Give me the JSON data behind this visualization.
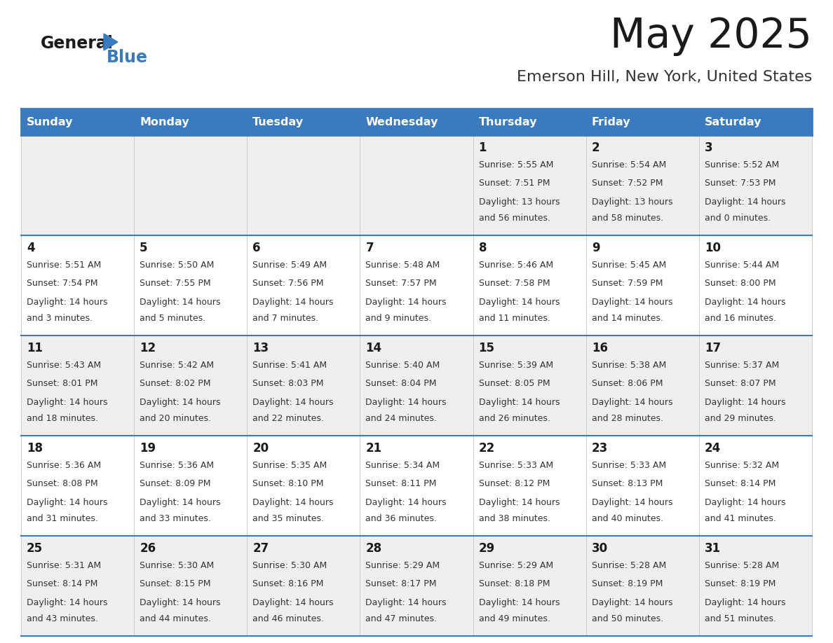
{
  "title": "May 2025",
  "subtitle": "Emerson Hill, New York, United States",
  "header_bg": "#3a7abf",
  "header_text": "#ffffff",
  "row_bg_odd": "#efefef",
  "row_bg_even": "#ffffff",
  "border_color": "#3a7abf",
  "day_headers": [
    "Sunday",
    "Monday",
    "Tuesday",
    "Wednesday",
    "Thursday",
    "Friday",
    "Saturday"
  ],
  "days": [
    {
      "col": 0,
      "row": 0,
      "num": "",
      "sunrise": "",
      "sunset": "",
      "daylight1": "",
      "daylight2": ""
    },
    {
      "col": 1,
      "row": 0,
      "num": "",
      "sunrise": "",
      "sunset": "",
      "daylight1": "",
      "daylight2": ""
    },
    {
      "col": 2,
      "row": 0,
      "num": "",
      "sunrise": "",
      "sunset": "",
      "daylight1": "",
      "daylight2": ""
    },
    {
      "col": 3,
      "row": 0,
      "num": "",
      "sunrise": "",
      "sunset": "",
      "daylight1": "",
      "daylight2": ""
    },
    {
      "col": 4,
      "row": 0,
      "num": "1",
      "sunrise": "Sunrise: 5:55 AM",
      "sunset": "Sunset: 7:51 PM",
      "daylight1": "Daylight: 13 hours",
      "daylight2": "and 56 minutes."
    },
    {
      "col": 5,
      "row": 0,
      "num": "2",
      "sunrise": "Sunrise: 5:54 AM",
      "sunset": "Sunset: 7:52 PM",
      "daylight1": "Daylight: 13 hours",
      "daylight2": "and 58 minutes."
    },
    {
      "col": 6,
      "row": 0,
      "num": "3",
      "sunrise": "Sunrise: 5:52 AM",
      "sunset": "Sunset: 7:53 PM",
      "daylight1": "Daylight: 14 hours",
      "daylight2": "and 0 minutes."
    },
    {
      "col": 0,
      "row": 1,
      "num": "4",
      "sunrise": "Sunrise: 5:51 AM",
      "sunset": "Sunset: 7:54 PM",
      "daylight1": "Daylight: 14 hours",
      "daylight2": "and 3 minutes."
    },
    {
      "col": 1,
      "row": 1,
      "num": "5",
      "sunrise": "Sunrise: 5:50 AM",
      "sunset": "Sunset: 7:55 PM",
      "daylight1": "Daylight: 14 hours",
      "daylight2": "and 5 minutes."
    },
    {
      "col": 2,
      "row": 1,
      "num": "6",
      "sunrise": "Sunrise: 5:49 AM",
      "sunset": "Sunset: 7:56 PM",
      "daylight1": "Daylight: 14 hours",
      "daylight2": "and 7 minutes."
    },
    {
      "col": 3,
      "row": 1,
      "num": "7",
      "sunrise": "Sunrise: 5:48 AM",
      "sunset": "Sunset: 7:57 PM",
      "daylight1": "Daylight: 14 hours",
      "daylight2": "and 9 minutes."
    },
    {
      "col": 4,
      "row": 1,
      "num": "8",
      "sunrise": "Sunrise: 5:46 AM",
      "sunset": "Sunset: 7:58 PM",
      "daylight1": "Daylight: 14 hours",
      "daylight2": "and 11 minutes."
    },
    {
      "col": 5,
      "row": 1,
      "num": "9",
      "sunrise": "Sunrise: 5:45 AM",
      "sunset": "Sunset: 7:59 PM",
      "daylight1": "Daylight: 14 hours",
      "daylight2": "and 14 minutes."
    },
    {
      "col": 6,
      "row": 1,
      "num": "10",
      "sunrise": "Sunrise: 5:44 AM",
      "sunset": "Sunset: 8:00 PM",
      "daylight1": "Daylight: 14 hours",
      "daylight2": "and 16 minutes."
    },
    {
      "col": 0,
      "row": 2,
      "num": "11",
      "sunrise": "Sunrise: 5:43 AM",
      "sunset": "Sunset: 8:01 PM",
      "daylight1": "Daylight: 14 hours",
      "daylight2": "and 18 minutes."
    },
    {
      "col": 1,
      "row": 2,
      "num": "12",
      "sunrise": "Sunrise: 5:42 AM",
      "sunset": "Sunset: 8:02 PM",
      "daylight1": "Daylight: 14 hours",
      "daylight2": "and 20 minutes."
    },
    {
      "col": 2,
      "row": 2,
      "num": "13",
      "sunrise": "Sunrise: 5:41 AM",
      "sunset": "Sunset: 8:03 PM",
      "daylight1": "Daylight: 14 hours",
      "daylight2": "and 22 minutes."
    },
    {
      "col": 3,
      "row": 2,
      "num": "14",
      "sunrise": "Sunrise: 5:40 AM",
      "sunset": "Sunset: 8:04 PM",
      "daylight1": "Daylight: 14 hours",
      "daylight2": "and 24 minutes."
    },
    {
      "col": 4,
      "row": 2,
      "num": "15",
      "sunrise": "Sunrise: 5:39 AM",
      "sunset": "Sunset: 8:05 PM",
      "daylight1": "Daylight: 14 hours",
      "daylight2": "and 26 minutes."
    },
    {
      "col": 5,
      "row": 2,
      "num": "16",
      "sunrise": "Sunrise: 5:38 AM",
      "sunset": "Sunset: 8:06 PM",
      "daylight1": "Daylight: 14 hours",
      "daylight2": "and 28 minutes."
    },
    {
      "col": 6,
      "row": 2,
      "num": "17",
      "sunrise": "Sunrise: 5:37 AM",
      "sunset": "Sunset: 8:07 PM",
      "daylight1": "Daylight: 14 hours",
      "daylight2": "and 29 minutes."
    },
    {
      "col": 0,
      "row": 3,
      "num": "18",
      "sunrise": "Sunrise: 5:36 AM",
      "sunset": "Sunset: 8:08 PM",
      "daylight1": "Daylight: 14 hours",
      "daylight2": "and 31 minutes."
    },
    {
      "col": 1,
      "row": 3,
      "num": "19",
      "sunrise": "Sunrise: 5:36 AM",
      "sunset": "Sunset: 8:09 PM",
      "daylight1": "Daylight: 14 hours",
      "daylight2": "and 33 minutes."
    },
    {
      "col": 2,
      "row": 3,
      "num": "20",
      "sunrise": "Sunrise: 5:35 AM",
      "sunset": "Sunset: 8:10 PM",
      "daylight1": "Daylight: 14 hours",
      "daylight2": "and 35 minutes."
    },
    {
      "col": 3,
      "row": 3,
      "num": "21",
      "sunrise": "Sunrise: 5:34 AM",
      "sunset": "Sunset: 8:11 PM",
      "daylight1": "Daylight: 14 hours",
      "daylight2": "and 36 minutes."
    },
    {
      "col": 4,
      "row": 3,
      "num": "22",
      "sunrise": "Sunrise: 5:33 AM",
      "sunset": "Sunset: 8:12 PM",
      "daylight1": "Daylight: 14 hours",
      "daylight2": "and 38 minutes."
    },
    {
      "col": 5,
      "row": 3,
      "num": "23",
      "sunrise": "Sunrise: 5:33 AM",
      "sunset": "Sunset: 8:13 PM",
      "daylight1": "Daylight: 14 hours",
      "daylight2": "and 40 minutes."
    },
    {
      "col": 6,
      "row": 3,
      "num": "24",
      "sunrise": "Sunrise: 5:32 AM",
      "sunset": "Sunset: 8:14 PM",
      "daylight1": "Daylight: 14 hours",
      "daylight2": "and 41 minutes."
    },
    {
      "col": 0,
      "row": 4,
      "num": "25",
      "sunrise": "Sunrise: 5:31 AM",
      "sunset": "Sunset: 8:14 PM",
      "daylight1": "Daylight: 14 hours",
      "daylight2": "and 43 minutes."
    },
    {
      "col": 1,
      "row": 4,
      "num": "26",
      "sunrise": "Sunrise: 5:30 AM",
      "sunset": "Sunset: 8:15 PM",
      "daylight1": "Daylight: 14 hours",
      "daylight2": "and 44 minutes."
    },
    {
      "col": 2,
      "row": 4,
      "num": "27",
      "sunrise": "Sunrise: 5:30 AM",
      "sunset": "Sunset: 8:16 PM",
      "daylight1": "Daylight: 14 hours",
      "daylight2": "and 46 minutes."
    },
    {
      "col": 3,
      "row": 4,
      "num": "28",
      "sunrise": "Sunrise: 5:29 AM",
      "sunset": "Sunset: 8:17 PM",
      "daylight1": "Daylight: 14 hours",
      "daylight2": "and 47 minutes."
    },
    {
      "col": 4,
      "row": 4,
      "num": "29",
      "sunrise": "Sunrise: 5:29 AM",
      "sunset": "Sunset: 8:18 PM",
      "daylight1": "Daylight: 14 hours",
      "daylight2": "and 49 minutes."
    },
    {
      "col": 5,
      "row": 4,
      "num": "30",
      "sunrise": "Sunrise: 5:28 AM",
      "sunset": "Sunset: 8:19 PM",
      "daylight1": "Daylight: 14 hours",
      "daylight2": "and 50 minutes."
    },
    {
      "col": 6,
      "row": 4,
      "num": "31",
      "sunrise": "Sunrise: 5:28 AM",
      "sunset": "Sunset: 8:19 PM",
      "daylight1": "Daylight: 14 hours",
      "daylight2": "and 51 minutes."
    }
  ]
}
